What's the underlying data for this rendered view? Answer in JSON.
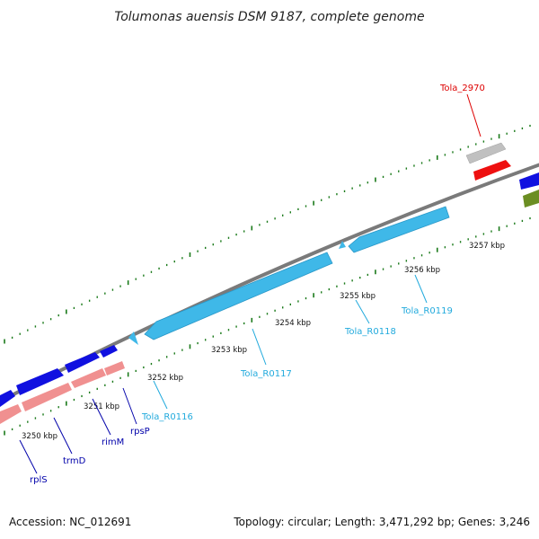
{
  "title": "Tolumonas auensis DSM 9187, complete genome",
  "footer": {
    "accession": "Accession: NC_012691",
    "summary": "Topology: circular; Length: 3,471,292 bp; Genes: 3,246"
  },
  "colors": {
    "rna": "#3fb8e8",
    "cds_blue": "#1010e0",
    "cds_pink": "#f09090",
    "cds_red": "#ee1010",
    "cds_gray": "#c0c0c0",
    "olive": "#6b8e23",
    "tick": "#1a7a1a",
    "backbone": "#808080",
    "label_red": "#dd0000",
    "label_blue": "#0000aa",
    "label_cyan": "#22aadd"
  },
  "ticks": [
    {
      "label": "3250 kbp"
    },
    {
      "label": "3251 kbp"
    },
    {
      "label": "3252 kbp"
    },
    {
      "label": "3253 kbp"
    },
    {
      "label": "3254 kbp"
    },
    {
      "label": "3255 kbp"
    },
    {
      "label": "3256 kbp"
    },
    {
      "label": "3257 kbp"
    }
  ],
  "features": {
    "tola_2970": "Tola_2970",
    "rplS": "rplS",
    "trmD": "trmD",
    "rimM": "rimM",
    "rpsP": "rpsP",
    "tola_r0116": "Tola_R0116",
    "tola_r0117": "Tola_R0117",
    "tola_r0118": "Tola_R0118",
    "tola_r0119": "Tola_R0119"
  }
}
